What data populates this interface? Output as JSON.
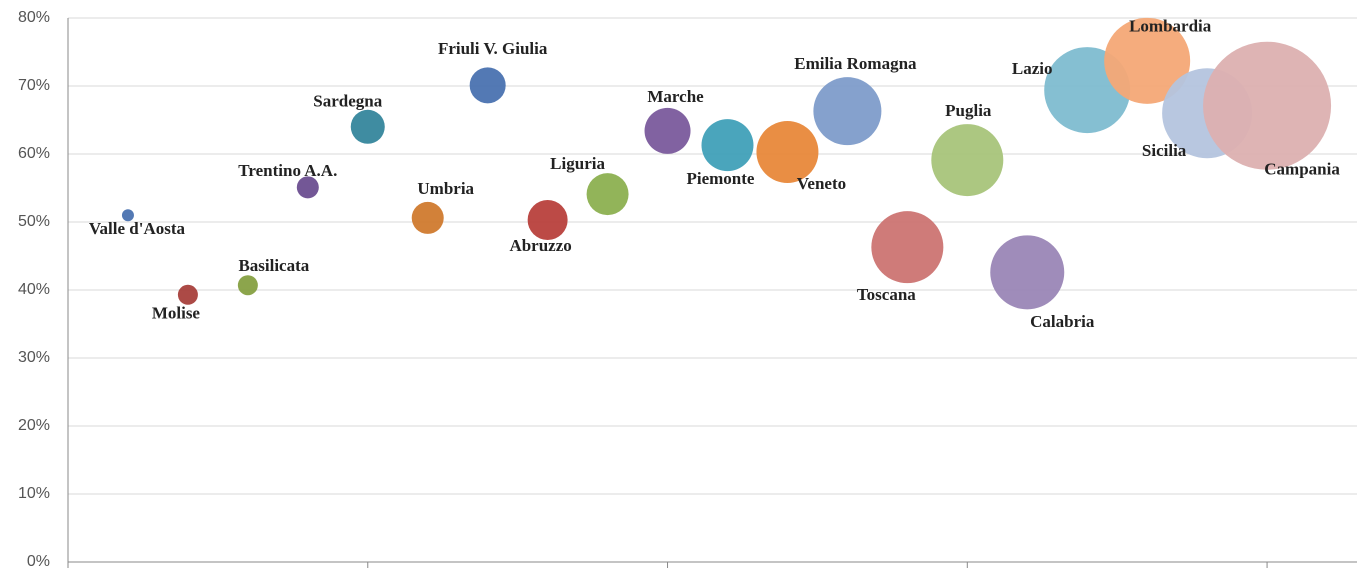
{
  "chart_data": {
    "type": "bubble",
    "labels": [
      "Valle d'Aosta",
      "Molise",
      "Basilicata",
      "Trentino A.A.",
      "Sardegna",
      "Umbria",
      "Friuli V. Giulia",
      "Abruzzo",
      "Liguria",
      "Marche",
      "Piemonte",
      "Veneto",
      "Emilia Romagna",
      "Toscana",
      "Puglia",
      "Calabria",
      "Lazio",
      "Lombardia",
      "Sicilia",
      "Campania"
    ],
    "x": [
      1,
      2,
      3,
      4,
      5,
      6,
      7,
      8,
      9,
      10,
      11,
      12,
      13,
      14,
      15,
      16,
      17,
      18,
      19,
      20
    ],
    "y": [
      51.0,
      39.3,
      40.7,
      55.1,
      64.0,
      50.6,
      70.1,
      50.3,
      54.1,
      63.4,
      61.3,
      60.3,
      66.3,
      46.3,
      59.1,
      42.6,
      69.4,
      73.7,
      66.0,
      67.1
    ],
    "sizes": [
      6,
      10,
      10,
      11,
      17,
      16,
      18,
      20,
      21,
      23,
      26,
      31,
      34,
      36,
      36,
      37,
      43,
      43,
      45,
      64
    ],
    "colors": [
      "#4a72b0",
      "#a8403c",
      "#86a042",
      "#6b4e90",
      "#35869c",
      "#d07a2e",
      "#4a72b0",
      "#b8403c",
      "#8cb050",
      "#7a5a9c",
      "#40a0b8",
      "#e8883a",
      "#7e9cca",
      "#cc7472",
      "#a8c47a",
      "#9a86b6",
      "#7ebcd0",
      "#f4a876",
      "#b4c4de",
      "#dcb0b0"
    ],
    "xlim": [
      0,
      21.5
    ],
    "xticks": [
      0,
      5,
      10,
      15,
      20
    ],
    "ylim": [
      0,
      80
    ],
    "yticks": [
      {
        "value": 0,
        "label": "0%"
      },
      {
        "value": 10,
        "label": "10%"
      },
      {
        "value": 20,
        "label": "20%"
      },
      {
        "value": 30,
        "label": "30%"
      },
      {
        "value": 40,
        "label": "40%"
      },
      {
        "value": 50,
        "label": "50%"
      },
      {
        "value": 60,
        "label": "60%"
      },
      {
        "value": 70,
        "label": "70%"
      },
      {
        "value": 80,
        "label": "80%"
      }
    ],
    "grid": true
  }
}
